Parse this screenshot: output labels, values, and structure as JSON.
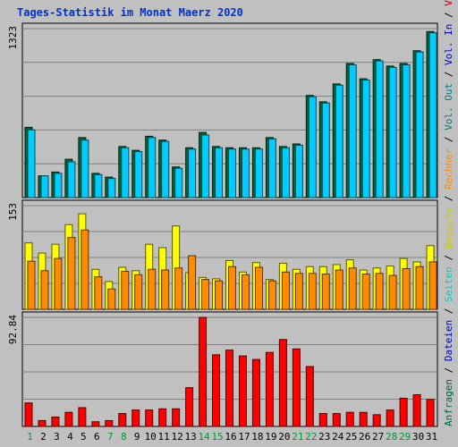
{
  "title": "Tages-Statistik im Monat Maerz 2020",
  "colors": {
    "title": "#0033cc",
    "anfragen": "#006633",
    "dateien": "#00ccff",
    "seiten": "#00ccdd",
    "besuche": "#ffff00",
    "rechner": "#ff8c00",
    "volumen": "#ff0000",
    "weekend": "#009933",
    "weekday": "#000000"
  },
  "legend_right": [
    {
      "text": "Anfragen",
      "color": "#006633"
    },
    {
      "text": " / ",
      "color": "#000000"
    },
    {
      "text": "Dateien",
      "color": "#0000cc"
    },
    {
      "text": " / ",
      "color": "#000000"
    },
    {
      "text": "Seiten",
      "color": "#00cccc"
    },
    {
      "text": " / ",
      "color": "#000000"
    },
    {
      "text": "Besuche",
      "color": "#cccc00"
    },
    {
      "text": " / ",
      "color": "#000000"
    },
    {
      "text": "Rechner",
      "color": "#ff8c00"
    },
    {
      "text": " / ",
      "color": "#000000"
    },
    {
      "text": "Vol. Out",
      "color": "#008080"
    },
    {
      "text": " / ",
      "color": "#000000"
    },
    {
      "text": "Vol. In",
      "color": "#0000cc"
    },
    {
      "text": " / ",
      "color": "#000000"
    },
    {
      "text": "Volumen",
      "color": "#cc0000"
    }
  ],
  "chart_data": [
    {
      "type": "bar",
      "name": "hits-panel",
      "axis_label": "1323",
      "ylim": [
        0,
        1323
      ],
      "series": [
        {
          "name": "Anfragen",
          "values": [
            550,
            170,
            200,
            300,
            470,
            190,
            160,
            400,
            370,
            480,
            450,
            240,
            390,
            510,
            400,
            390,
            390,
            390,
            470,
            400,
            420,
            800,
            750,
            890,
            1050,
            930,
            1080,
            1030,
            1050,
            1150,
            1300
          ]
        },
        {
          "name": "Dateien",
          "values": [
            530,
            170,
            190,
            280,
            450,
            180,
            150,
            390,
            360,
            470,
            440,
            230,
            380,
            490,
            390,
            380,
            380,
            380,
            460,
            390,
            410,
            790,
            740,
            880,
            1040,
            920,
            1070,
            1020,
            1040,
            1140,
            1290
          ]
        }
      ]
    },
    {
      "type": "bar",
      "name": "visits-panel",
      "axis_label": "153",
      "ylim": [
        0,
        153
      ],
      "series": [
        {
          "name": "Besuche",
          "values": [
            98,
            83,
            96,
            125,
            141,
            59,
            41,
            62,
            57,
            96,
            91,
            123,
            54,
            47,
            45,
            72,
            55,
            69,
            44,
            68,
            59,
            63,
            63,
            66,
            73,
            58,
            61,
            64,
            75,
            70,
            94
          ]
        },
        {
          "name": "Rechner",
          "values": [
            71,
            57,
            75,
            106,
            117,
            48,
            30,
            56,
            51,
            59,
            58,
            61,
            79,
            44,
            42,
            63,
            51,
            62,
            42,
            55,
            53,
            53,
            52,
            58,
            61,
            52,
            53,
            50,
            60,
            63,
            70
          ]
        }
      ]
    },
    {
      "type": "bar",
      "name": "volume-panel",
      "axis_label": "92.84",
      "ylim": [
        0,
        92.84
      ],
      "series": [
        {
          "name": "Volumen",
          "values": [
            20,
            5,
            8,
            12,
            16,
            4,
            5,
            11,
            14,
            14,
            15,
            15,
            33,
            93,
            61,
            65,
            60,
            57,
            63,
            74,
            66,
            51,
            11,
            11,
            12,
            12,
            10,
            14,
            24,
            27,
            23
          ]
        }
      ]
    }
  ],
  "x_days": [
    "1",
    "2",
    "3",
    "4",
    "5",
    "6",
    "7",
    "8",
    "9",
    "10",
    "11",
    "12",
    "13",
    "14",
    "15",
    "16",
    "17",
    "18",
    "19",
    "20",
    "21",
    "22",
    "23",
    "24",
    "25",
    "26",
    "27",
    "28",
    "29",
    "30",
    "31"
  ],
  "weekend_days": [
    1,
    7,
    8,
    14,
    15,
    21,
    22,
    28,
    29
  ]
}
